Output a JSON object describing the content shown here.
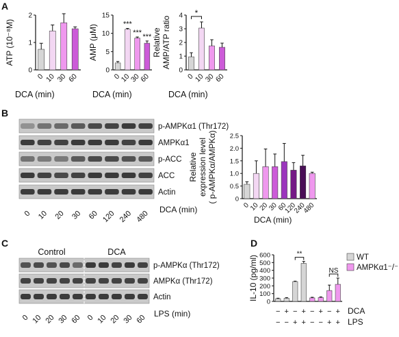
{
  "panel_letters": [
    "A",
    "B",
    "C",
    "D"
  ],
  "colors": {
    "gray": "#d6d6d6",
    "lavender": "#f3d7f3",
    "violet_light": "#ef98ee",
    "violet": "#cc5bd8",
    "purple": "#9b35bd",
    "plum": "#751a86",
    "dark_plum": "#4a0f57",
    "blot_band": "#2b2b2b",
    "blot_bg": "#c9c9c9",
    "err": "#111111"
  },
  "panel_b_blot": {
    "labels": [
      "p-AMPKα1 (Thr172)",
      "AMPKα1",
      "p-ACC",
      "ACC",
      "Actin"
    ],
    "lanes": [
      "0",
      "10",
      "20",
      "30",
      "60",
      "120",
      "240",
      "480"
    ],
    "xlabel": "DCA (min)"
  },
  "panel_c_blot": {
    "groups": [
      "Control",
      "DCA"
    ],
    "labels": [
      "p-AMPKα (Thr172)",
      "AMPKα (Thr172)",
      "Actin"
    ],
    "lanes": [
      "0",
      "10",
      "20",
      "30",
      "60",
      "0",
      "10",
      "20",
      "30",
      "60"
    ],
    "xlabel": "LPS (min)"
  },
  "chart_data": [
    {
      "id": "A-ATP",
      "type": "bar",
      "categories": [
        "0",
        "10",
        "30",
        "60"
      ],
      "values": [
        0.75,
        1.42,
        1.72,
        1.5
      ],
      "errors": [
        0.22,
        0.22,
        0.33,
        0.07
      ],
      "colors": [
        "#d6d6d6",
        "#f3d7f3",
        "#ef98ee",
        "#cc5bd8"
      ],
      "ylabel": "ATP (10⁻⁸M)",
      "xlabel": "DCA (min)",
      "ylim": [
        0,
        2
      ],
      "yticks": [
        0,
        1,
        2
      ],
      "annotations": []
    },
    {
      "id": "A-AMP",
      "type": "bar",
      "categories": [
        "0",
        "10",
        "30",
        "60"
      ],
      "values": [
        1.9,
        11.1,
        8.7,
        7.3
      ],
      "errors": [
        0.4,
        0.25,
        0.3,
        0.6
      ],
      "colors": [
        "#d6d6d6",
        "#f3d7f3",
        "#ef98ee",
        "#cc5bd8"
      ],
      "ylabel": "AMP (μM)",
      "xlabel": "DCA (min)",
      "ylim": [
        0,
        15
      ],
      "yticks": [
        0,
        5,
        10,
        15
      ],
      "annotations": [
        "",
        "***",
        "***",
        "***"
      ]
    },
    {
      "id": "A-ratio",
      "type": "bar",
      "categories": [
        "0",
        "10",
        "30",
        "60"
      ],
      "values": [
        0.95,
        3.05,
        1.75,
        1.65
      ],
      "errors": [
        0.3,
        0.45,
        0.45,
        0.3
      ],
      "colors": [
        "#d6d6d6",
        "#f3d7f3",
        "#ef98ee",
        "#cc5bd8"
      ],
      "ylabel": [
        "Relative",
        "AMP/ATP ratio"
      ],
      "xlabel": "DCA (min)",
      "ylim": [
        0,
        4
      ],
      "yticks": [
        0,
        1,
        2,
        3,
        4
      ],
      "annotations": [],
      "bracket": {
        "from": 0,
        "to": 1,
        "label": "*"
      }
    },
    {
      "id": "B-quant",
      "type": "bar",
      "categories": [
        "0",
        "10",
        "20",
        "30",
        "60",
        "120",
        "240",
        "480"
      ],
      "values": [
        0.57,
        1.0,
        1.27,
        1.27,
        1.47,
        1.13,
        1.3,
        1.0
      ],
      "errors": [
        0.1,
        0.5,
        0.7,
        0.5,
        0.72,
        0.3,
        0.42,
        0.05
      ],
      "colors": [
        "#d6d6d6",
        "#f3d7f3",
        "#ef98ee",
        "#cc5bd8",
        "#9b35bd",
        "#751a86",
        "#4a0f57",
        "#ef98ee"
      ],
      "ylabel": [
        "Relative",
        "expression level",
        "( p-AMPKα/AMPKα)"
      ],
      "xlabel": "DCA (min)",
      "ylim": [
        0,
        2.5
      ],
      "yticks": [
        0,
        0.5,
        1.0,
        1.5,
        2.0,
        2.5
      ],
      "ytick_labels": [
        "0",
        "0.5",
        "1.0",
        "1.5",
        "2.0",
        "2.5"
      ],
      "annotations": []
    },
    {
      "id": "D-IL10",
      "type": "bar",
      "categories": [
        "WT",
        "WT",
        "WT",
        "WT",
        "AMPKα1−/−",
        "AMPKα1−/−",
        "AMPKα1−/−",
        "AMPKα1−/−"
      ],
      "values": [
        35,
        40,
        255,
        490,
        45,
        50,
        140,
        220
      ],
      "errors": [
        6,
        8,
        6,
        25,
        8,
        8,
        70,
        80
      ],
      "colors": [
        "#d6d6d6",
        "#d6d6d6",
        "#d6d6d6",
        "#d6d6d6",
        "#ef98ee",
        "#ef98ee",
        "#ef98ee",
        "#ef98ee"
      ],
      "ylabel": "IL-10 (pg/ml)",
      "ylim": [
        0,
        600
      ],
      "yticks": [
        0,
        100,
        200,
        300,
        400,
        500,
        600
      ],
      "legend": [
        {
          "name": "WT",
          "color": "#d6d6d6"
        },
        {
          "name": "AMPKα1⁻/⁻",
          "color": "#ef98ee"
        }
      ],
      "dca": [
        "−",
        "+",
        "−",
        "+",
        "−",
        "+",
        "−",
        "+"
      ],
      "lps": [
        "−",
        "−",
        "+",
        "+",
        "−",
        "−",
        "+",
        "+"
      ],
      "row_labels": [
        "DCA",
        "LPS"
      ],
      "brackets": [
        {
          "from": 2,
          "to": 3,
          "label": "**"
        },
        {
          "from": 6,
          "to": 7,
          "label": "NS"
        }
      ]
    }
  ]
}
